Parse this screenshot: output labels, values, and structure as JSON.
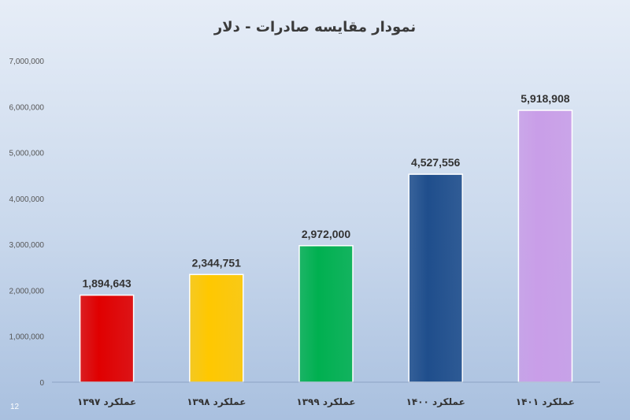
{
  "slide_number": "12",
  "chart_data": {
    "type": "bar",
    "title": "نمودار مقایسه صادرات - دلار",
    "xlabel": "",
    "ylabel": "",
    "categories": [
      "عملکرد ۱۳۹۷",
      "عملکرد ۱۳۹۸",
      "عملکرد ۱۳۹۹",
      "عملکرد ۱۴۰۰",
      "عملکرد ۱۴۰۱"
    ],
    "values": [
      1894643,
      2344751,
      2972000,
      4527556,
      5918908
    ],
    "value_labels": [
      "1,894,643",
      "2,344,751",
      "2,972,000",
      "4,527,556",
      "5,918,908"
    ],
    "colors": [
      "#e00000",
      "#ffc800",
      "#00b050",
      "#1f4e8c",
      "#c99ee8"
    ],
    "ylim": [
      0,
      7000000
    ],
    "yticks": [
      0,
      1000000,
      2000000,
      3000000,
      4000000,
      5000000,
      6000000,
      7000000
    ],
    "ytick_labels": [
      "0",
      "1,000,000",
      "2,000,000",
      "3,000,000",
      "4,000,000",
      "5,000,000",
      "6,000,000",
      "7,000,000"
    ],
    "grid": false,
    "legend": "none"
  }
}
